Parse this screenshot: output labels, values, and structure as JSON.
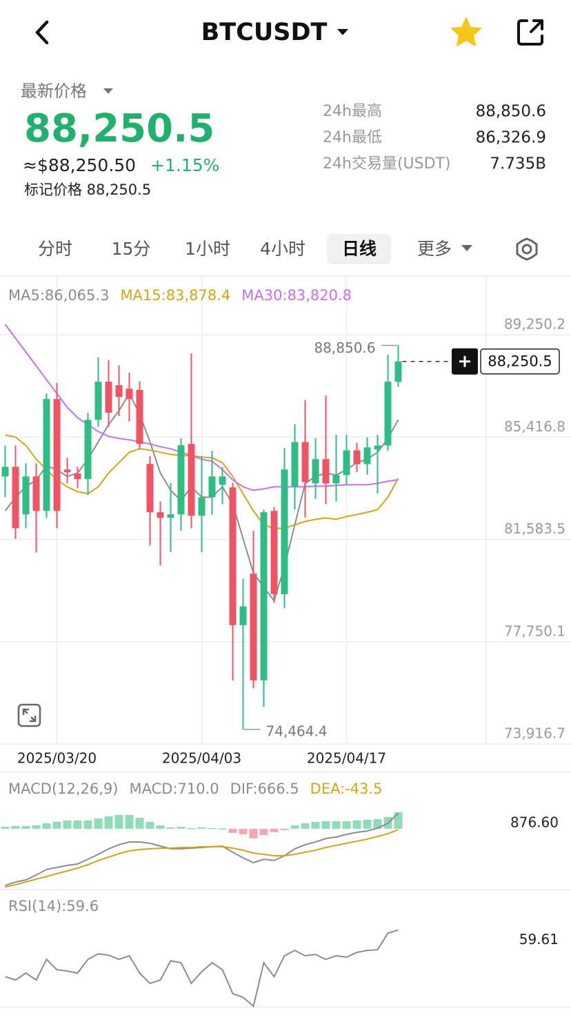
{
  "header": {
    "title": "BTCUSDT"
  },
  "price": {
    "label": "最新价格",
    "last": "88,250.5",
    "usd": "≈$88,250.50",
    "change": "+1.15%",
    "mark": "标记价格 88,250.5"
  },
  "stats": [
    {
      "label": "24h最高",
      "value": "88,850.6"
    },
    {
      "label": "24h最低",
      "value": "86,326.9"
    },
    {
      "label": "24h交易量(USDT)",
      "value": "7.735B"
    }
  ],
  "tabs": [
    "分时",
    "15分",
    "1小时",
    "4小时",
    "日线",
    "更多"
  ],
  "active_tab": 4,
  "chart_data": [
    {
      "type": "candlestick",
      "categories": [
        null,
        null,
        null,
        null,
        null,
        "2025/03/20",
        null,
        null,
        null,
        null,
        null,
        null,
        null,
        null,
        null,
        null,
        null,
        null,
        null,
        "2025/04/03",
        null,
        null,
        null,
        null,
        null,
        null,
        null,
        null,
        null,
        null,
        null,
        null,
        null,
        "2025/04/17",
        null,
        null,
        null,
        null,
        null
      ],
      "open": [
        83940,
        84300,
        82520,
        83940,
        82650,
        86840,
        84200,
        84050,
        83840,
        86060,
        87490,
        87360,
        87230,
        87180,
        84410,
        82600,
        82390,
        82520,
        85160,
        82470,
        83160,
        83630,
        83530,
        78370,
        80300,
        76300,
        82650,
        79530,
        83550,
        85230,
        83680,
        84590,
        83680,
        83990,
        84920,
        84400,
        84950,
        85100,
        87490
      ],
      "high": [
        85100,
        85100,
        84430,
        84430,
        87050,
        87440,
        84640,
        84300,
        86330,
        88400,
        88300,
        88100,
        87830,
        87500,
        84700,
        83000,
        83700,
        85370,
        88550,
        84700,
        84900,
        84300,
        83700,
        80100,
        81900,
        82700,
        82800,
        85000,
        85900,
        86800,
        85370,
        86980,
        85500,
        85500,
        85200,
        85400,
        85500,
        88500,
        88850.6
      ],
      "low": [
        83160,
        81600,
        82000,
        81090,
        82390,
        82000,
        83680,
        83500,
        83250,
        85800,
        85800,
        86200,
        86000,
        84950,
        81350,
        80600,
        81100,
        81900,
        82000,
        81100,
        82500,
        82900,
        76300,
        74464.4,
        76000,
        75300,
        79200,
        79000,
        82700,
        82400,
        83100,
        82900,
        83000,
        83600,
        84100,
        84000,
        83300,
        84900,
        87300
      ],
      "close": [
        84300,
        82000,
        83940,
        82650,
        86840,
        82650,
        84100,
        83840,
        86060,
        87490,
        86330,
        86920,
        86840,
        85160,
        82600,
        82390,
        82520,
        85110,
        82470,
        83160,
        83940,
        83940,
        78370,
        79070,
        76300,
        82600,
        79530,
        84200,
        85230,
        83730,
        84590,
        83680,
        83990,
        84920,
        84400,
        85030,
        85100,
        87490,
        88250.5
      ],
      "up_color": "#2ebd85",
      "down_color": "#ef5364",
      "series": [
        {
          "name": "MA5:86,065.3",
          "color": "#8c8c8c",
          "values": [
            82646,
            83163,
            83552,
            83811,
            84329,
            84199,
            83940,
            84070,
            84588,
            85235,
            85883,
            86401,
            87048,
            86271,
            85235,
            84070,
            83422,
            83034,
            83552,
            83163,
            83163,
            83552,
            82904,
            81609,
            80314,
            79796,
            79278,
            80573,
            82127,
            83681,
            83940,
            84070,
            83992,
            84199,
            84458,
            84588,
            84847,
            85365,
            86065.3
          ]
        },
        {
          "name": "MA15:83,878.4",
          "color": "#d4a514",
          "values": [
            85494,
            85417,
            85106,
            84588,
            84199,
            83811,
            83552,
            83371,
            83293,
            83552,
            84070,
            84458,
            84847,
            84976,
            84925,
            84847,
            84769,
            84717,
            84717,
            84666,
            84640,
            84458,
            83940,
            83293,
            82646,
            82127,
            81998,
            81998,
            82127,
            82257,
            82335,
            82386,
            82335,
            82438,
            82516,
            82594,
            82697,
            83163,
            83878.4
          ]
        },
        {
          "name": "MA30:83,820.8",
          "color": "#c86ff0",
          "values": [
            89639,
            89120,
            88602,
            88084,
            87566,
            87048,
            86530,
            86142,
            85883,
            85624,
            85443,
            85365,
            85313,
            85235,
            85158,
            85054,
            84976,
            84847,
            84717,
            84588,
            84510,
            84199,
            83811,
            83552,
            83422,
            83474,
            83552,
            83552,
            83552,
            83552,
            83578,
            83578,
            83604,
            83630,
            83630,
            83630,
            83682,
            83759,
            83820.8
          ]
        }
      ],
      "ylim": [
        73916.7,
        91448.9
      ],
      "yticks": [
        {
          "value": 89250.2,
          "label": "89,250.2"
        },
        {
          "value": 85416.8,
          "label": "85,416.8"
        },
        {
          "value": 81583.5,
          "label": "81,583.5"
        },
        {
          "value": 77750.1,
          "label": "77,750.1"
        },
        {
          "value": 73916.7,
          "label": "73,916.7"
        }
      ],
      "grid": true,
      "high_label": "88,850.6",
      "low_label": "74,464.4",
      "last_label": "88,250.5"
    },
    {
      "type": "macd",
      "title": "MACD(12,26,9)",
      "histogram": {
        "name": "MACD:710.0",
        "color": "#8c8c8c",
        "up_color": "#8fdcb8",
        "down_color": "#f5a7b0",
        "values": [
          88,
          117,
          117,
          147,
          235,
          294,
          352,
          352,
          352,
          440,
          528,
          587,
          587,
          470,
          294,
          147,
          59,
          88,
          29,
          59,
          29,
          10,
          -176,
          -235,
          -411,
          -264,
          -147,
          -59,
          147,
          235,
          294,
          323,
          323,
          323,
          352,
          382,
          411,
          499,
          710
        ]
      },
      "series": [
        {
          "name": "DIF:666.5",
          "color": "#8c8c8c",
          "values": [
            -2410,
            -2264,
            -2176,
            -1970,
            -1735,
            -1647,
            -1559,
            -1500,
            -1295,
            -1089,
            -854,
            -678,
            -561,
            -561,
            -619,
            -737,
            -854,
            -854,
            -825,
            -796,
            -766,
            -737,
            -1001,
            -1236,
            -1442,
            -1295,
            -1353,
            -1148,
            -854,
            -678,
            -561,
            -414,
            -355,
            -238,
            -150,
            -91,
            26,
            232,
            666.5
          ]
        },
        {
          "name": "DEA:-43.5",
          "color": "#d4a514",
          "values": [
            -2475,
            -2381,
            -2264,
            -2146,
            -2029,
            -1911,
            -1794,
            -1676,
            -1530,
            -1353,
            -1207,
            -1060,
            -942,
            -884,
            -854,
            -825,
            -825,
            -796,
            -796,
            -766,
            -766,
            -766,
            -825,
            -913,
            -1031,
            -1089,
            -1148,
            -1148,
            -1089,
            -1001,
            -913,
            -796,
            -708,
            -619,
            -531,
            -443,
            -326,
            -208,
            -43.5
          ]
        }
      ],
      "ylim": [
        -2500,
        876.6
      ],
      "yticks": [
        {
          "value": 876.6,
          "label": "876.60"
        }
      ]
    },
    {
      "type": "line",
      "series": [
        {
          "name": "RSI(14):59.6",
          "color": "#8c8c8c",
          "values": [
            38.8,
            37.3,
            40.4,
            37.3,
            46.5,
            41.9,
            41.3,
            40.4,
            46.5,
            49.0,
            48.4,
            46.5,
            48.1,
            40.4,
            35.8,
            37.3,
            45.9,
            45.0,
            35.8,
            41.0,
            45.0,
            41.9,
            31.2,
            29.6,
            25.6,
            45.0,
            38.8,
            48.1,
            50.5,
            48.1,
            48.7,
            46.5,
            48.1,
            47.5,
            49.6,
            50.5,
            50.8,
            58.2,
            59.61
          ]
        }
      ],
      "ylim": [
        25,
        65
      ],
      "yticks": [
        59.61
      ]
    }
  ]
}
